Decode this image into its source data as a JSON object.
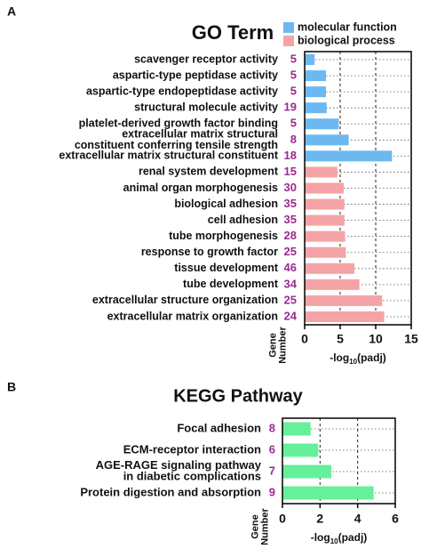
{
  "chart_data": [
    {
      "type": "bar",
      "orientation": "horizontal",
      "panel_label": "A",
      "title": "GO Term",
      "categories": [
        "scavenger receptor activity",
        "aspartic-type peptidase activity",
        "aspartic-type endopeptidase activity",
        "structural molecule activity",
        "platelet-derived growth factor binding",
        [
          "extracellular matrix structural",
          "constituent conferring tensile strength"
        ],
        "extracellular matrix structural constituent",
        "renal system development",
        "animal organ morphogenesis",
        "biological adhesion",
        "cell adhesion",
        "tube morphogenesis",
        "response to growth factor",
        "tissue development",
        "tube development",
        "extracellular structure organization",
        "extracellular matrix organization"
      ],
      "gene_numbers": [
        5,
        5,
        5,
        19,
        5,
        8,
        18,
        15,
        30,
        35,
        35,
        28,
        25,
        46,
        34,
        25,
        24
      ],
      "series": [
        {
          "name": "molecular function",
          "color": "#6cb8f0",
          "values": [
            1.4,
            3.0,
            3.0,
            3.1,
            4.8,
            6.2,
            12.3,
            null,
            null,
            null,
            null,
            null,
            null,
            null,
            null,
            null,
            null
          ]
        },
        {
          "name": "biological process",
          "color": "#f5a3a6",
          "values": [
            null,
            null,
            null,
            null,
            null,
            null,
            null,
            4.6,
            5.5,
            5.6,
            5.6,
            5.7,
            5.8,
            7.0,
            7.7,
            10.9,
            11.2
          ]
        }
      ],
      "xlim": [
        0,
        15
      ],
      "xticks": [
        0,
        5,
        10,
        15
      ],
      "x_label": {
        "text": "-log",
        "subscript": "10",
        "suffix": "(padj)"
      },
      "gene_number_label": [
        "Gene",
        "Number"
      ],
      "grid": true,
      "legend": "top-right"
    },
    {
      "type": "bar",
      "orientation": "horizontal",
      "panel_label": "B",
      "title": "KEGG Pathway",
      "categories": [
        "Focal adhesion",
        "ECM-receptor interaction",
        [
          "AGE-RAGE signaling pathway",
          "in diabetic complications"
        ],
        "Protein digestion and absorption"
      ],
      "gene_numbers": [
        8,
        6,
        7,
        9
      ],
      "values": [
        1.5,
        1.9,
        2.6,
        4.85
      ],
      "color": "#66f09a",
      "xlim": [
        0,
        6
      ],
      "xticks": [
        0,
        2,
        4,
        6
      ],
      "x_label": {
        "text": "-log",
        "subscript": "10",
        "suffix": "(padj)"
      },
      "gene_number_label": [
        "Gene",
        "Number"
      ],
      "grid": true
    }
  ]
}
